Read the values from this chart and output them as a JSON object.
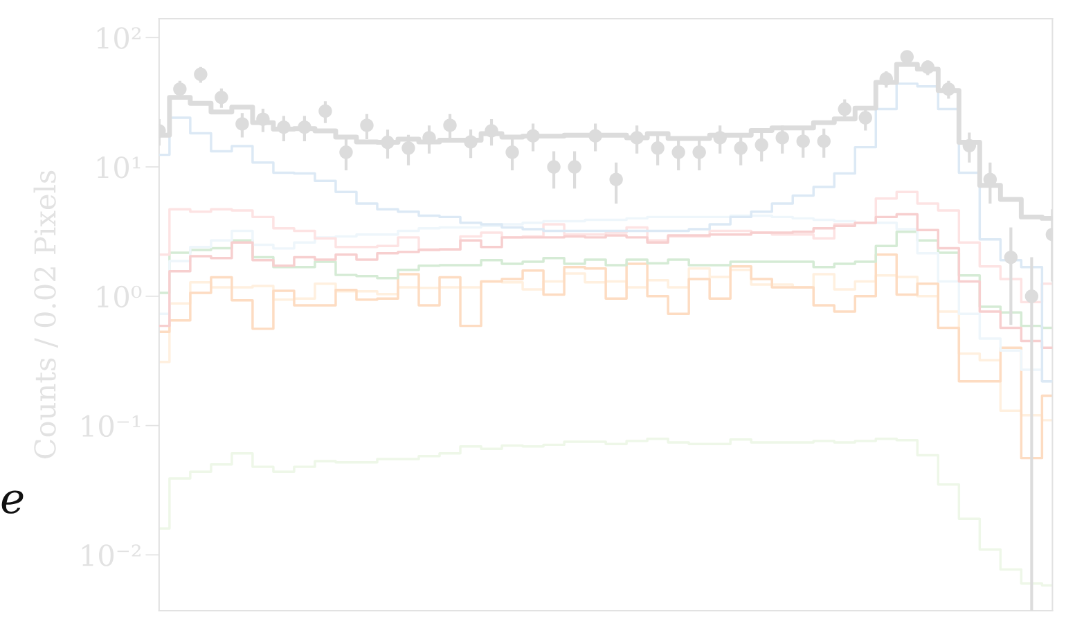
{
  "chart_data": {
    "type": "step",
    "ylabel": "Counts / 0.02 Pixels",
    "annotations": [
      "e"
    ],
    "log": true,
    "ylim": [
      0.0037,
      140
    ],
    "yticks": [
      {
        "value": 0.01,
        "label": "10⁻²"
      },
      {
        "value": 0.1,
        "label": "10⁻¹"
      },
      {
        "value": 1,
        "label": "10⁰"
      },
      {
        "value": 10,
        "label": "10¹"
      },
      {
        "value": 100,
        "label": "10²"
      }
    ],
    "categories": [
      null,
      null,
      null,
      null,
      null,
      null,
      null,
      null,
      null,
      null,
      null,
      null,
      null,
      null,
      null,
      null,
      null,
      null,
      null,
      null,
      null,
      null,
      null,
      null,
      null,
      null,
      null,
      null,
      null,
      null,
      null,
      null,
      null,
      null,
      null,
      null,
      null,
      null,
      null,
      null,
      null,
      null,
      null,
      null
    ],
    "series": [
      {
        "color": "#eef7e8",
        "values": [
          0.016,
          0.039,
          0.044,
          0.05,
          0.061,
          0.048,
          0.044,
          0.048,
          0.053,
          0.052,
          0.052,
          0.055,
          0.055,
          0.058,
          0.061,
          0.069,
          0.066,
          0.07,
          0.069,
          0.071,
          0.075,
          0.075,
          0.072,
          0.076,
          0.079,
          0.074,
          0.072,
          0.072,
          0.078,
          0.074,
          0.074,
          0.074,
          0.076,
          0.074,
          0.076,
          0.079,
          0.077,
          0.059,
          0.035,
          0.019,
          0.011,
          0.0077,
          0.006,
          0.0058
        ]
      },
      {
        "color": "#fff0df",
        "values": [
          0.31,
          0.88,
          1.28,
          1.17,
          1.17,
          1.2,
          0.94,
          0.96,
          1.25,
          1.09,
          1.09,
          1.04,
          1.17,
          1.16,
          1.17,
          1.17,
          1.3,
          1.28,
          1.13,
          1.3,
          1.5,
          1.28,
          1.3,
          1.17,
          1.33,
          1.17,
          1.64,
          1.41,
          1.6,
          1.23,
          1.23,
          1.17,
          1.48,
          1.13,
          1.3,
          1.45,
          1.41,
          1.0,
          0.76,
          0.36,
          0.32,
          0.13,
          0.12,
          0.11
        ]
      },
      {
        "color": "#fddcc2",
        "values": [
          0.53,
          0.65,
          1.06,
          1.4,
          0.93,
          0.56,
          1.1,
          0.85,
          0.85,
          1.12,
          0.94,
          0.96,
          1.48,
          0.85,
          1.4,
          0.59,
          1.3,
          1.36,
          1.58,
          1.03,
          1.68,
          1.64,
          0.96,
          1.78,
          1.0,
          0.73,
          1.36,
          0.96,
          1.7,
          1.36,
          1.17,
          1.17,
          0.85,
          0.76,
          1.0,
          2.1,
          1.03,
          1.25,
          0.57,
          0.22,
          0.22,
          0.4,
          0.056,
          0.17
        ]
      },
      {
        "color": "#d5ebd5",
        "values": [
          1.06,
          2.17,
          2.28,
          2.35,
          2.7,
          2.0,
          1.68,
          1.68,
          1.85,
          1.46,
          1.43,
          1.38,
          1.6,
          1.72,
          1.74,
          1.74,
          1.9,
          1.78,
          1.85,
          1.97,
          1.78,
          1.92,
          1.74,
          1.92,
          1.8,
          1.92,
          1.74,
          1.74,
          1.85,
          1.85,
          1.85,
          1.85,
          1.68,
          1.78,
          1.85,
          2.45,
          3.15,
          2.7,
          2.17,
          1.45,
          0.83,
          0.75,
          0.59,
          0.57
        ]
      },
      {
        "color": "#eef6fb",
        "values": [
          0.73,
          1.87,
          2.4,
          2.7,
          3.2,
          2.5,
          2.34,
          2.6,
          2.85,
          2.9,
          3.0,
          3.0,
          3.2,
          3.35,
          3.4,
          3.4,
          3.5,
          3.6,
          3.7,
          3.8,
          3.8,
          3.9,
          3.9,
          4.0,
          4.1,
          4.1,
          4.1,
          4.1,
          4.2,
          4.2,
          4.1,
          4.0,
          3.9,
          3.8,
          3.7,
          3.7,
          3.3,
          2.15,
          1.3,
          0.73,
          0.47,
          0.38,
          0.27,
          0.22
        ]
      },
      {
        "color": "#fde3e3",
        "values": [
          2.1,
          4.7,
          4.5,
          4.7,
          4.6,
          4.1,
          3.35,
          3.2,
          2.8,
          2.4,
          2.4,
          2.45,
          2.85,
          2.3,
          2.3,
          2.9,
          3.1,
          2.85,
          2.9,
          3.6,
          3.0,
          3.0,
          3.1,
          3.4,
          2.7,
          2.9,
          2.9,
          3.2,
          3.2,
          3.1,
          3.0,
          3.0,
          2.8,
          3.6,
          3.7,
          5.7,
          6.4,
          5.2,
          4.6,
          2.6,
          1.7,
          1.36,
          0.9,
          1.25
        ]
      },
      {
        "color": "#f7cfcf",
        "values": [
          0.59,
          1.56,
          2.04,
          1.97,
          2.6,
          1.9,
          1.72,
          2.0,
          1.92,
          2.1,
          1.92,
          2.15,
          2.2,
          2.28,
          2.3,
          2.7,
          2.4,
          2.85,
          2.85,
          2.85,
          2.9,
          2.85,
          2.95,
          2.85,
          2.6,
          2.95,
          2.95,
          3.0,
          3.0,
          3.1,
          3.1,
          3.15,
          3.35,
          3.5,
          3.7,
          4.1,
          4.3,
          3.25,
          2.35,
          1.3,
          0.76,
          0.57,
          0.45,
          0.4
        ]
      },
      {
        "color": "#dce9f5",
        "values": [
          12.4,
          24,
          18.2,
          13.2,
          14.5,
          10.8,
          9.0,
          8.9,
          7.8,
          6.4,
          5.2,
          4.7,
          4.5,
          4.2,
          4.1,
          3.7,
          3.6,
          3.4,
          3.3,
          3.2,
          3.2,
          3.2,
          3.2,
          3.2,
          3.2,
          3.2,
          3.3,
          3.6,
          4.1,
          4.5,
          5.2,
          6.0,
          7.0,
          8.9,
          14.2,
          28,
          44,
          42,
          28,
          9.0,
          2.75,
          1.9,
          1.68,
          0.22
        ]
      },
      {
        "color": "#dcdcdc",
        "values": [
          17.6,
          34.5,
          31,
          26.6,
          29,
          22,
          19.6,
          19.8,
          19,
          17,
          15.6,
          15.5,
          16.4,
          15.6,
          16.1,
          16.1,
          18.1,
          17.0,
          17.3,
          17.3,
          17.6,
          17.6,
          17.6,
          16.8,
          18.1,
          16.6,
          16.6,
          17.6,
          17.6,
          19.1,
          20,
          20,
          22,
          23.5,
          28.5,
          45,
          62,
          57,
          39,
          15.5,
          7.2,
          5.6,
          4.1,
          4.0
        ]
      },
      {
        "type": "scatter",
        "color": "#dcdcdc",
        "marker": "circle",
        "values": [
          19,
          40,
          52,
          34.5,
          21.5,
          23.4,
          20.3,
          20.3,
          27,
          13,
          21,
          15.5,
          14,
          16.8,
          21,
          15.6,
          19,
          13,
          17.4,
          10,
          10,
          17.4,
          8.0,
          16.8,
          14,
          13,
          13,
          16.8,
          14,
          14.8,
          16.8,
          15.8,
          15.8,
          28,
          24,
          48,
          71,
          59,
          40,
          14.6,
          8.0,
          2.0,
          1.0,
          3.0
        ],
        "errors": [
          4.4,
          6.3,
          7.2,
          5.9,
          4.6,
          4.8,
          4.5,
          4.5,
          5.2,
          3.6,
          4.6,
          3.9,
          3.7,
          4.1,
          4.6,
          3.9,
          4.4,
          3.6,
          4.2,
          3.2,
          3.2,
          4.2,
          2.8,
          4.1,
          3.7,
          3.6,
          3.6,
          4.1,
          3.7,
          3.8,
          4.1,
          4.0,
          4.0,
          5.3,
          4.9,
          6.9,
          8.4,
          7.7,
          6.3,
          3.8,
          2.8,
          1.4,
          [
            0.9963,
            1.0
          ],
          1.7
        ]
      }
    ]
  }
}
